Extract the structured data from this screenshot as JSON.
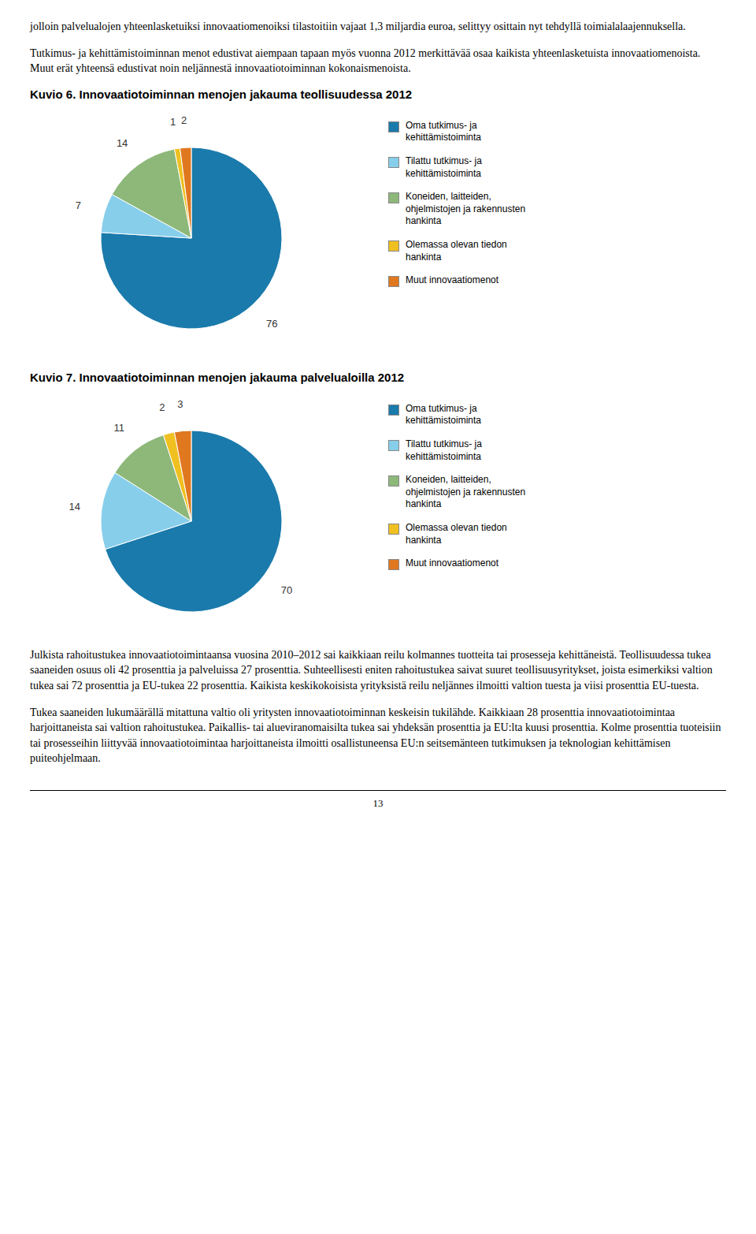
{
  "chart_data": [
    {
      "type": "pie",
      "title": "Kuvio 6. Innovaatiotoiminnan menojen jakauma teollisuudessa 2012",
      "categories": [
        "Oma tutkimus- ja\nkehittämistoiminta",
        "Tilattu tutkimus- ja\nkehittämistoiminta",
        "Koneiden, laitteiden,\nohjelmistojen ja rakennusten\nhankinta",
        "Olemassa olevan tiedon\nhankinta",
        "Muut innovaatiomenot"
      ],
      "values": [
        76,
        7,
        14,
        1,
        2
      ],
      "colors": [
        "#1a7aab",
        "#87ceeb",
        "#8db87a",
        "#f0c020",
        "#e07820"
      ],
      "data_labels": true,
      "legend": "right",
      "annotations": [
        "jolloin palvelualojen yhteenlasketuiksi innovaatiomenoiksi tilastoitiin vajaat 1,3 miljardia euroa, selittyy osittain nyt tehdyllä toimialalaajennuksella.",
        "Tutkimus- ja kehittämistoiminnan menot edustivat aiempaan tapaan myös vuonna 2012 merkittävää osaa kaikista yhteenlasketuista innovaatiomenoista. Muut erät yhteensä edustivat noin neljännestä innovaatiotoiminnan kokonaismenoista."
      ]
    },
    {
      "type": "pie",
      "title": "Kuvio 7. Innovaatiotoiminnan menojen jakauma palvelualoilla 2012",
      "categories": [
        "Oma tutkimus- ja\nkehittämistoiminta",
        "Tilattu tutkimus- ja\nkehittämistoiminta",
        "Koneiden, laitteiden,\nohjelmistojen ja rakennusten\nhankinta",
        "Olemassa olevan tiedon\nhankinta",
        "Muut innovaatiomenot"
      ],
      "values": [
        70,
        14,
        11,
        2,
        3
      ],
      "colors": [
        "#1a7aab",
        "#87ceeb",
        "#8db87a",
        "#f0c020",
        "#e07820"
      ],
      "data_labels": true,
      "legend": "right",
      "annotations": [
        "Julkista rahoitustukea innovaatiotoimintaansa vuosina 2010–2012 sai kaikkiaan reilu kolmannes tuotteita tai prosesseja kehittäneistä. Teollisuudessa tukea saaneiden osuus oli 42 prosenttia ja palveluissa 27 prosenttia. Suhteellisesti eniten rahoitustukea saivat suuret teollisuusyritykset, joista esimerkiksi valtion tukea sai 72 prosenttia ja EU-tukea 22 prosenttia. Kaikista keskikokoisista yrityksistä reilu neljännes ilmoitti valtion tuesta ja viisi prosenttia EU-tuesta.",
        "Tukea saaneiden lukumäärällä mitattuna valtio oli yritysten innovaatiotoiminnan keskeisin tukilähde. Kaikkiaan 28 prosenttia innovaatiotoimintaa harjoittaneista sai valtion rahoitustukea. Paikallis- tai alueviranomaisilta tukea sai yhdeksän prosenttia ja EU:lta kuusi prosenttia. Kolme prosenttia tuoteisiin tai prosesseihin liittyvää innovaatiotoimintaa harjoittaneista ilmoitti osallistuneensa EU:n seitsemänteen tutkimuksen ja teknologian kehittämisen puiteohjelmaan.",
        "13"
      ]
    }
  ]
}
